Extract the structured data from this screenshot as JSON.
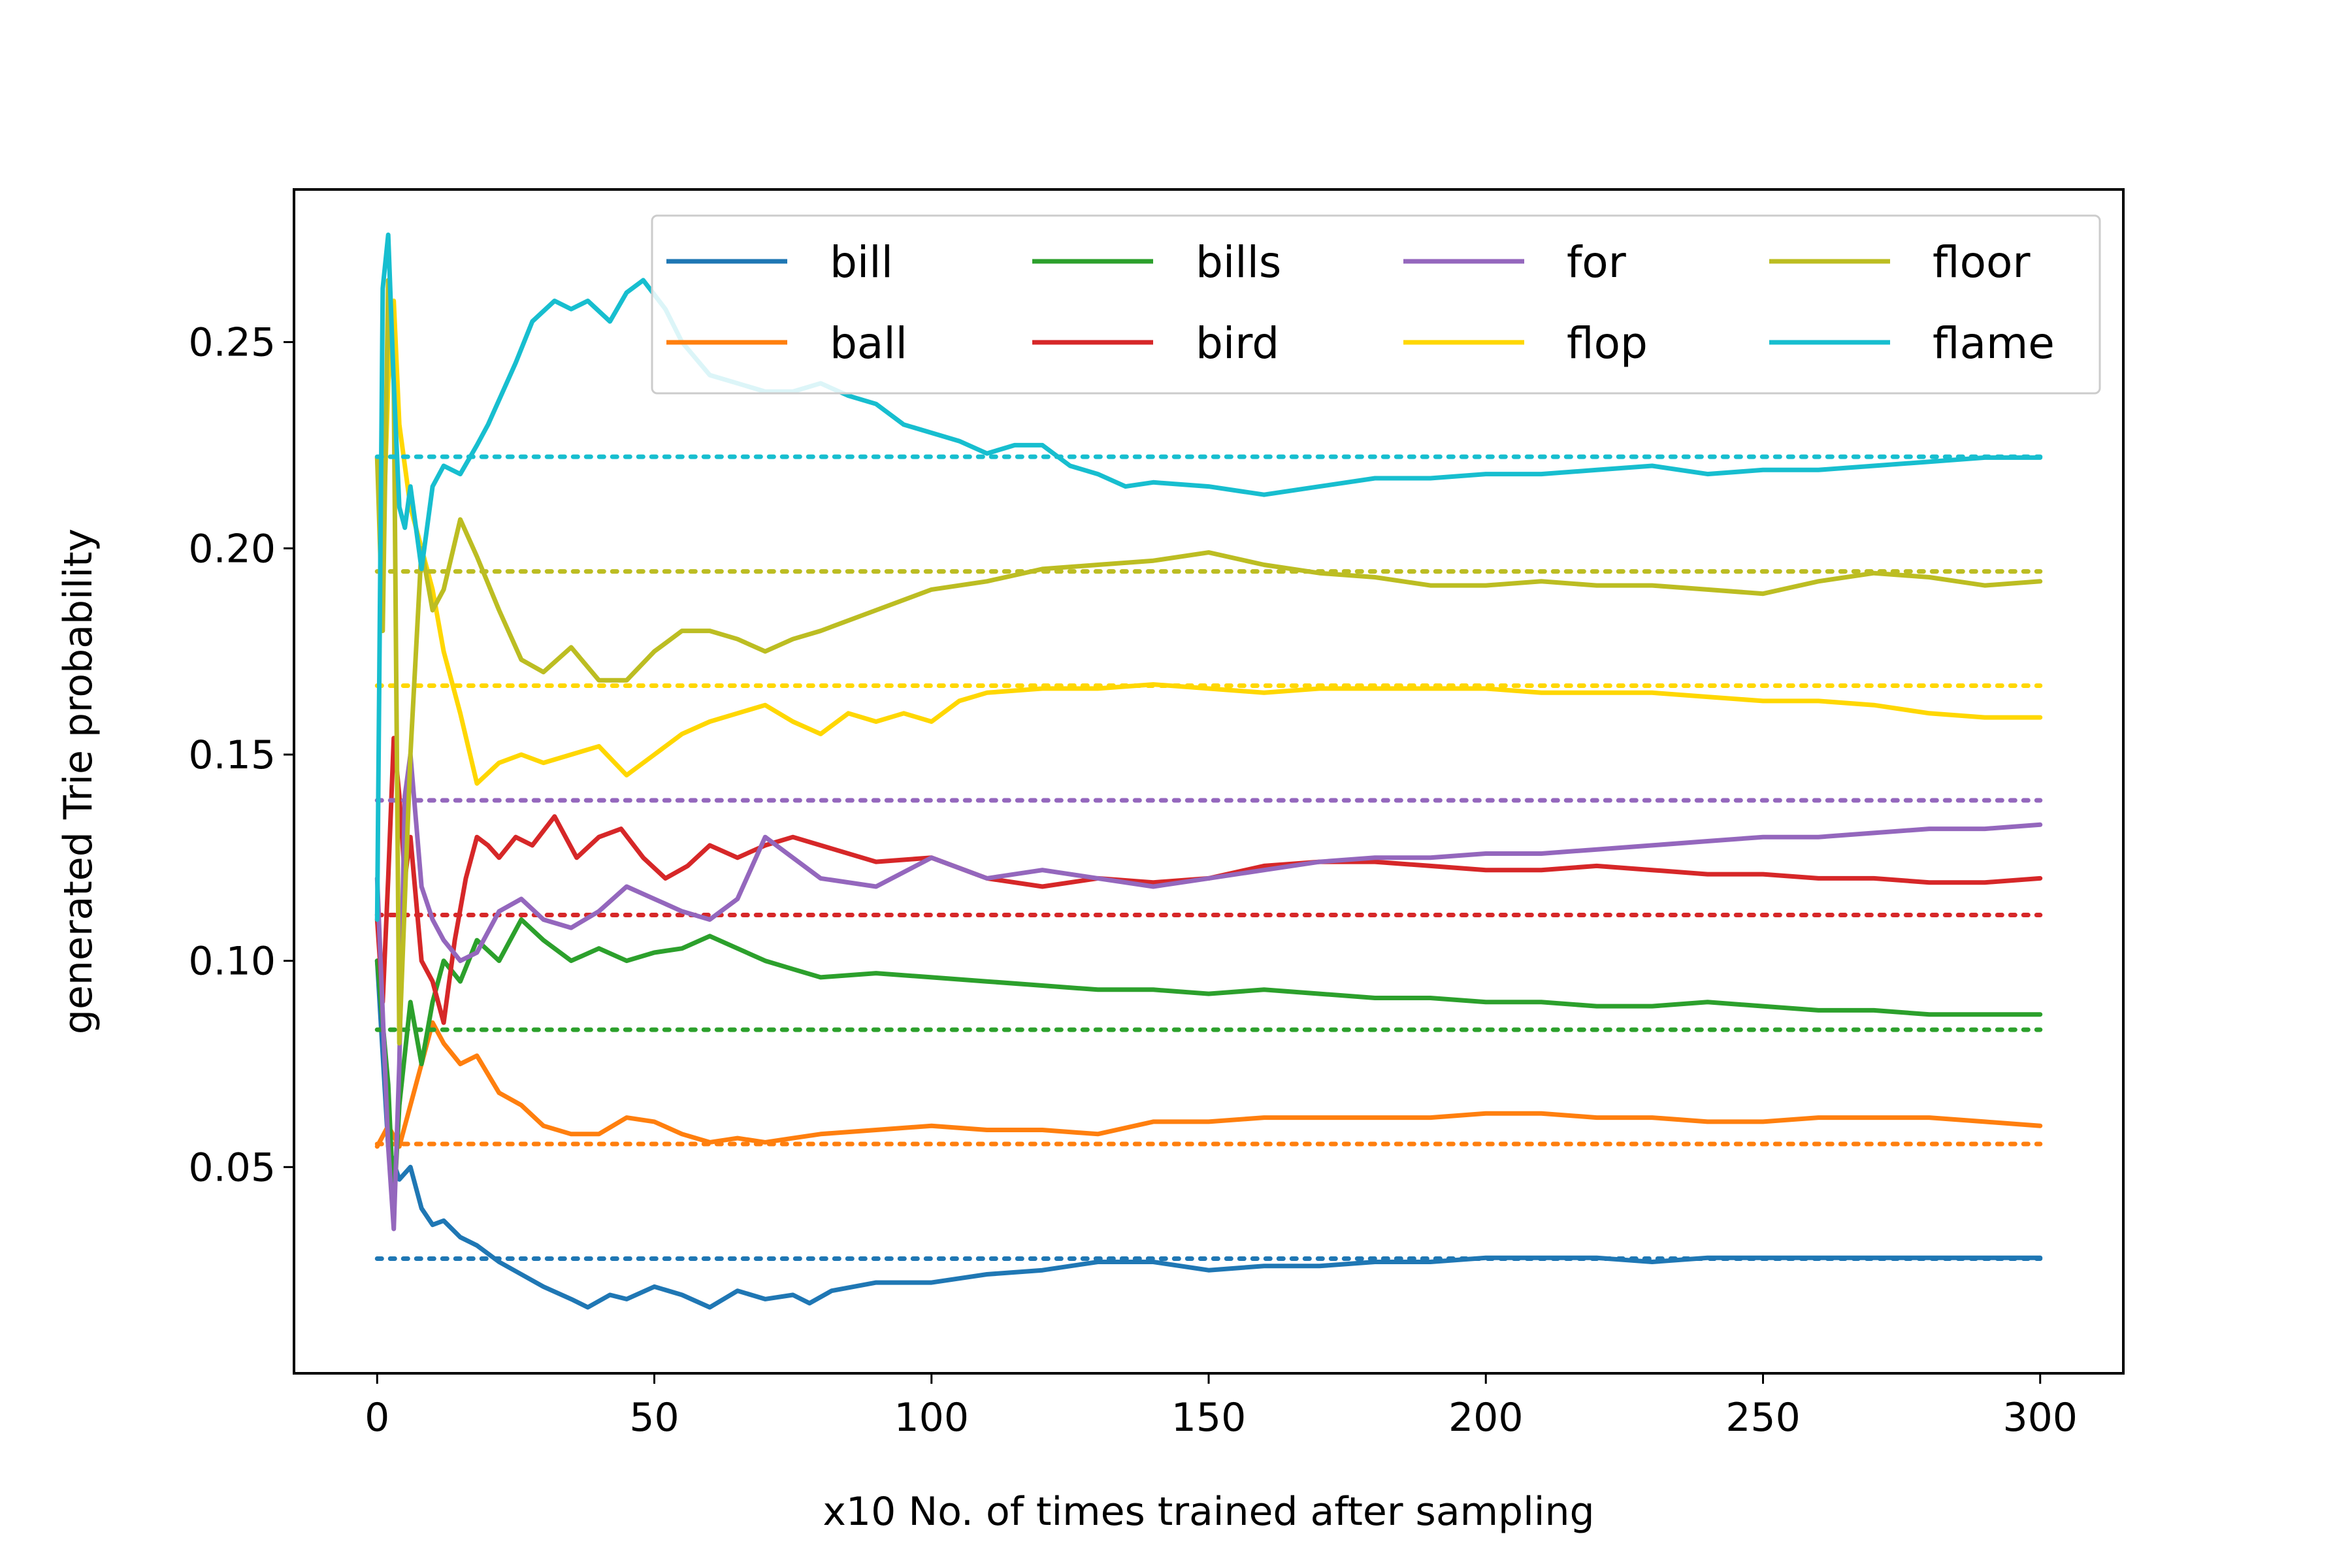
{
  "chart_data": {
    "type": "line",
    "title": "",
    "xlabel": "x10 No. of times trained after sampling",
    "ylabel": "generated Trie probability",
    "xlim": [
      -15,
      315
    ],
    "ylim": [
      0.0,
      0.287
    ],
    "xticks": [
      0,
      50,
      100,
      150,
      200,
      250,
      300
    ],
    "xtick_labels": [
      "0",
      "50",
      "100",
      "150",
      "200",
      "250",
      "300"
    ],
    "yticks": [
      0.05,
      0.1,
      0.15,
      0.2,
      0.25
    ],
    "ytick_labels": [
      "0.05",
      "0.10",
      "0.15",
      "0.20",
      "0.25"
    ],
    "legend_position": "top-right",
    "legend_columns": 4,
    "series": [
      {
        "name": "bill",
        "color": "#1f77b4",
        "target": 0.0278,
        "x": [
          0,
          2,
          4,
          6,
          8,
          10,
          12,
          15,
          18,
          22,
          26,
          30,
          35,
          38,
          42,
          45,
          50,
          55,
          60,
          65,
          70,
          75,
          78,
          82,
          90,
          100,
          110,
          120,
          130,
          140,
          150,
          160,
          170,
          180,
          190,
          200,
          210,
          220,
          230,
          240,
          250,
          260,
          270,
          280,
          290,
          300
        ],
        "values": [
          0.1,
          0.055,
          0.047,
          0.05,
          0.04,
          0.036,
          0.037,
          0.033,
          0.031,
          0.027,
          0.024,
          0.021,
          0.018,
          0.016,
          0.019,
          0.018,
          0.021,
          0.019,
          0.016,
          0.02,
          0.018,
          0.019,
          0.017,
          0.02,
          0.022,
          0.022,
          0.024,
          0.025,
          0.027,
          0.027,
          0.025,
          0.026,
          0.026,
          0.027,
          0.027,
          0.028,
          0.028,
          0.028,
          0.027,
          0.028,
          0.028,
          0.028,
          0.028,
          0.028,
          0.028,
          0.028
        ]
      },
      {
        "name": "ball",
        "color": "#ff7f0e",
        "target": 0.0556,
        "x": [
          0,
          2,
          4,
          6,
          8,
          10,
          12,
          15,
          18,
          22,
          26,
          30,
          35,
          40,
          45,
          50,
          55,
          60,
          65,
          70,
          75,
          80,
          90,
          100,
          110,
          120,
          130,
          140,
          150,
          160,
          170,
          180,
          190,
          200,
          210,
          220,
          230,
          240,
          250,
          260,
          270,
          280,
          290,
          300
        ],
        "values": [
          0.055,
          0.06,
          0.055,
          0.065,
          0.075,
          0.085,
          0.08,
          0.075,
          0.077,
          0.068,
          0.065,
          0.06,
          0.058,
          0.058,
          0.062,
          0.061,
          0.058,
          0.056,
          0.057,
          0.056,
          0.057,
          0.058,
          0.059,
          0.06,
          0.059,
          0.059,
          0.058,
          0.061,
          0.061,
          0.062,
          0.062,
          0.062,
          0.062,
          0.063,
          0.063,
          0.062,
          0.062,
          0.061,
          0.061,
          0.062,
          0.062,
          0.062,
          0.061,
          0.06
        ]
      },
      {
        "name": "bills",
        "color": "#2ca02c",
        "target": 0.0833,
        "x": [
          0,
          2,
          3,
          4,
          6,
          8,
          10,
          12,
          15,
          18,
          22,
          26,
          30,
          35,
          40,
          45,
          50,
          55,
          60,
          65,
          70,
          75,
          80,
          90,
          100,
          110,
          120,
          130,
          140,
          150,
          160,
          170,
          180,
          190,
          200,
          210,
          220,
          230,
          240,
          250,
          260,
          270,
          280,
          290,
          300
        ],
        "values": [
          0.1,
          0.07,
          0.04,
          0.065,
          0.09,
          0.075,
          0.09,
          0.1,
          0.095,
          0.105,
          0.1,
          0.11,
          0.105,
          0.1,
          0.103,
          0.1,
          0.102,
          0.103,
          0.106,
          0.103,
          0.1,
          0.098,
          0.096,
          0.097,
          0.096,
          0.095,
          0.094,
          0.093,
          0.093,
          0.092,
          0.093,
          0.092,
          0.091,
          0.091,
          0.09,
          0.09,
          0.089,
          0.089,
          0.09,
          0.089,
          0.088,
          0.088,
          0.087,
          0.087,
          0.087
        ]
      },
      {
        "name": "bird",
        "color": "#d62728",
        "target": 0.1111,
        "x": [
          0,
          1,
          2,
          3,
          4,
          5,
          6,
          8,
          10,
          12,
          14,
          16,
          18,
          20,
          22,
          25,
          28,
          32,
          36,
          40,
          44,
          48,
          52,
          56,
          60,
          65,
          70,
          75,
          80,
          90,
          100,
          110,
          120,
          130,
          140,
          150,
          160,
          170,
          180,
          190,
          200,
          210,
          220,
          230,
          240,
          250,
          260,
          270,
          280,
          290,
          300
        ],
        "values": [
          0.11,
          0.09,
          0.12,
          0.154,
          0.14,
          0.12,
          0.13,
          0.1,
          0.095,
          0.085,
          0.105,
          0.12,
          0.13,
          0.128,
          0.125,
          0.13,
          0.128,
          0.135,
          0.125,
          0.13,
          0.132,
          0.125,
          0.12,
          0.123,
          0.128,
          0.125,
          0.128,
          0.13,
          0.128,
          0.124,
          0.125,
          0.12,
          0.118,
          0.12,
          0.119,
          0.12,
          0.123,
          0.124,
          0.124,
          0.123,
          0.122,
          0.122,
          0.123,
          0.122,
          0.121,
          0.121,
          0.12,
          0.12,
          0.119,
          0.119,
          0.12
        ]
      },
      {
        "name": "for",
        "color": "#9467bd",
        "target": 0.1389,
        "x": [
          0,
          2,
          3,
          4,
          5,
          6,
          8,
          10,
          12,
          15,
          18,
          22,
          26,
          30,
          35,
          40,
          45,
          50,
          55,
          60,
          65,
          70,
          75,
          80,
          90,
          100,
          110,
          120,
          130,
          140,
          150,
          160,
          170,
          180,
          190,
          200,
          210,
          220,
          230,
          240,
          250,
          260,
          270,
          280,
          290,
          300
        ],
        "values": [
          0.12,
          0.055,
          0.035,
          0.075,
          0.14,
          0.15,
          0.118,
          0.11,
          0.105,
          0.1,
          0.102,
          0.112,
          0.115,
          0.11,
          0.108,
          0.112,
          0.118,
          0.115,
          0.112,
          0.11,
          0.115,
          0.13,
          0.125,
          0.12,
          0.118,
          0.125,
          0.12,
          0.122,
          0.12,
          0.118,
          0.12,
          0.122,
          0.124,
          0.125,
          0.125,
          0.126,
          0.126,
          0.127,
          0.128,
          0.129,
          0.13,
          0.13,
          0.131,
          0.132,
          0.132,
          0.133
        ]
      },
      {
        "name": "flop",
        "color": "#ffd700",
        "target": 0.1667,
        "x": [
          0,
          1,
          2,
          3,
          4,
          6,
          8,
          10,
          12,
          15,
          18,
          22,
          26,
          30,
          35,
          40,
          45,
          50,
          55,
          60,
          65,
          70,
          75,
          80,
          85,
          90,
          95,
          100,
          105,
          110,
          120,
          130,
          140,
          150,
          160,
          170,
          180,
          190,
          200,
          210,
          220,
          230,
          240,
          250,
          260,
          270,
          280,
          290,
          300
        ],
        "values": [
          0.222,
          0.2,
          0.24,
          0.26,
          0.23,
          0.21,
          0.2,
          0.19,
          0.175,
          0.16,
          0.143,
          0.148,
          0.15,
          0.148,
          0.15,
          0.152,
          0.145,
          0.15,
          0.155,
          0.158,
          0.16,
          0.162,
          0.158,
          0.155,
          0.16,
          0.158,
          0.16,
          0.158,
          0.163,
          0.165,
          0.166,
          0.166,
          0.167,
          0.166,
          0.165,
          0.166,
          0.166,
          0.166,
          0.166,
          0.165,
          0.165,
          0.165,
          0.164,
          0.163,
          0.163,
          0.162,
          0.16,
          0.159,
          0.159
        ]
      },
      {
        "name": "floor",
        "color": "#bcbd22",
        "target": 0.1944,
        "x": [
          0,
          1,
          2,
          3,
          4,
          6,
          8,
          10,
          12,
          15,
          18,
          22,
          26,
          30,
          35,
          40,
          45,
          50,
          55,
          60,
          65,
          70,
          75,
          80,
          90,
          100,
          110,
          120,
          130,
          140,
          150,
          160,
          170,
          180,
          190,
          200,
          210,
          220,
          230,
          240,
          250,
          260,
          270,
          280,
          290,
          300
        ],
        "values": [
          0.222,
          0.18,
          0.265,
          0.24,
          0.08,
          0.15,
          0.2,
          0.185,
          0.19,
          0.207,
          0.198,
          0.185,
          0.173,
          0.17,
          0.176,
          0.168,
          0.168,
          0.175,
          0.18,
          0.18,
          0.178,
          0.175,
          0.178,
          0.18,
          0.185,
          0.19,
          0.192,
          0.195,
          0.196,
          0.197,
          0.199,
          0.196,
          0.194,
          0.193,
          0.191,
          0.191,
          0.192,
          0.191,
          0.191,
          0.19,
          0.189,
          0.192,
          0.194,
          0.193,
          0.191,
          0.192
        ]
      },
      {
        "name": "flame",
        "color": "#17becf",
        "target": 0.2222,
        "x": [
          0,
          1,
          2,
          3,
          4,
          5,
          6,
          8,
          10,
          12,
          15,
          18,
          20,
          25,
          28,
          32,
          35,
          38,
          42,
          45,
          48,
          52,
          55,
          60,
          65,
          70,
          75,
          80,
          85,
          90,
          95,
          100,
          105,
          110,
          115,
          120,
          125,
          130,
          135,
          140,
          150,
          160,
          170,
          180,
          190,
          200,
          210,
          220,
          230,
          240,
          250,
          260,
          270,
          280,
          290,
          300
        ],
        "values": [
          0.11,
          0.263,
          0.276,
          0.24,
          0.21,
          0.205,
          0.215,
          0.195,
          0.215,
          0.22,
          0.218,
          0.225,
          0.23,
          0.245,
          0.255,
          0.26,
          0.258,
          0.26,
          0.255,
          0.262,
          0.265,
          0.258,
          0.25,
          0.242,
          0.24,
          0.238,
          0.238,
          0.24,
          0.237,
          0.235,
          0.23,
          0.228,
          0.226,
          0.223,
          0.225,
          0.225,
          0.22,
          0.218,
          0.215,
          0.216,
          0.215,
          0.213,
          0.215,
          0.217,
          0.217,
          0.218,
          0.218,
          0.219,
          0.22,
          0.218,
          0.219,
          0.219,
          0.22,
          0.221,
          0.222,
          0.222
        ]
      }
    ]
  }
}
